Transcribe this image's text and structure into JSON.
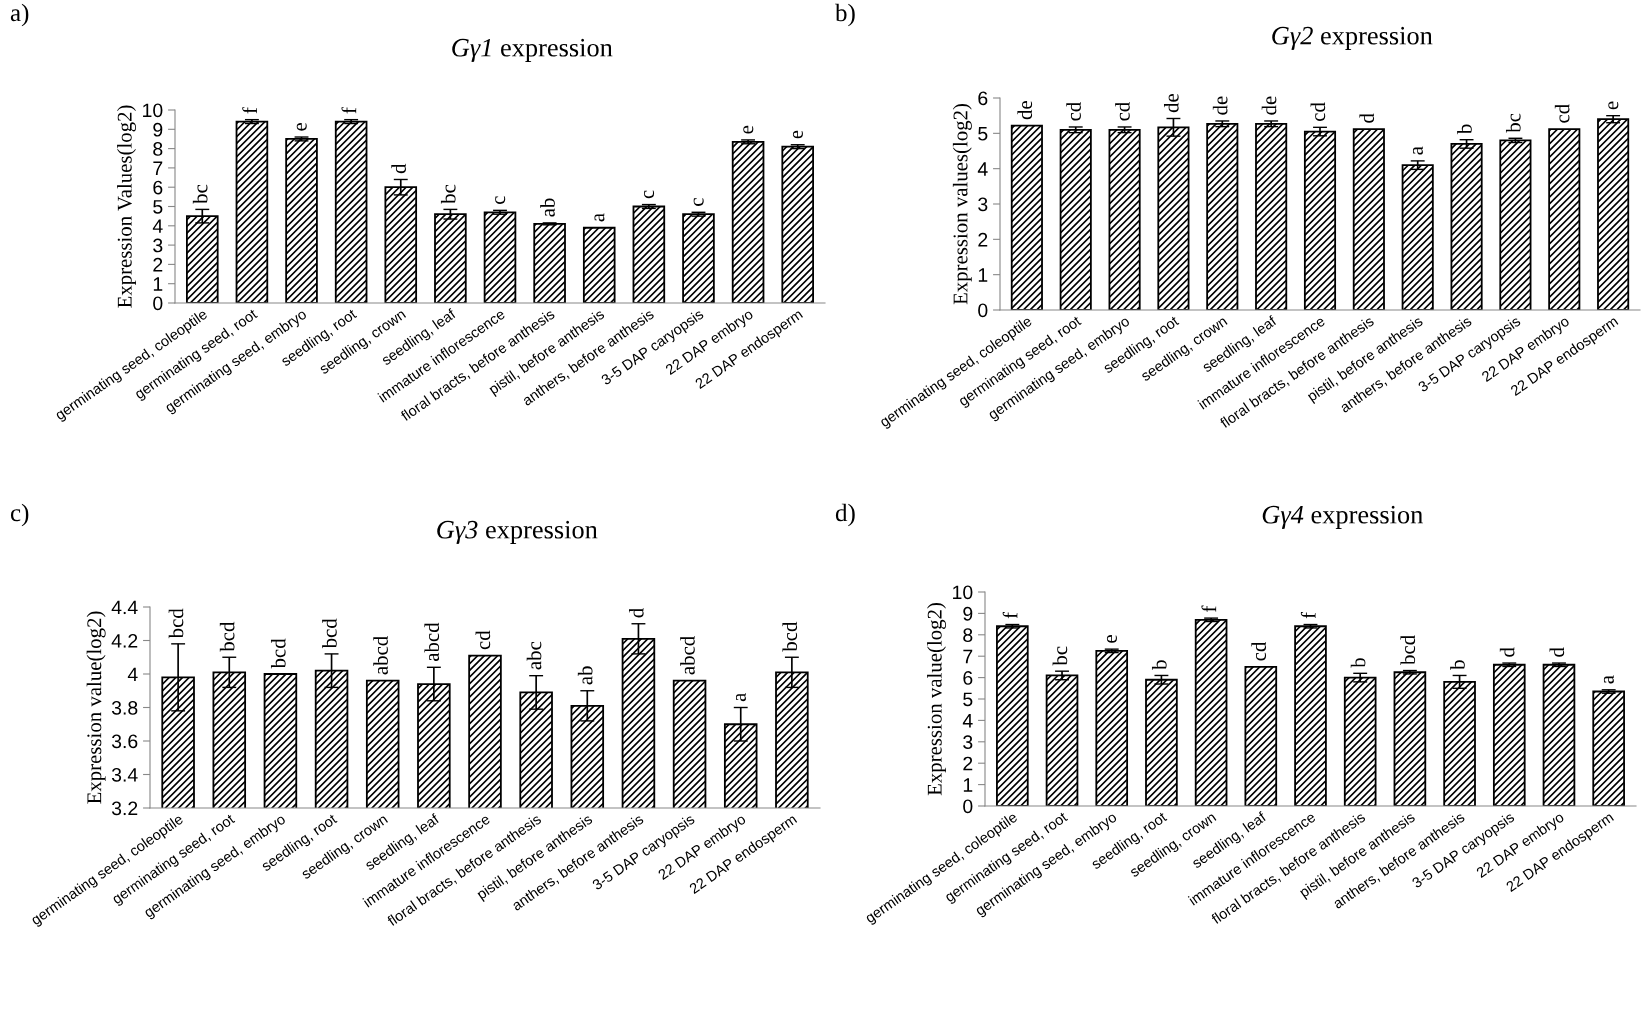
{
  "chart_data": [
    {
      "type": "bar",
      "title": "Gγ1 expression",
      "ylabel": "Expression Values(log2)",
      "annotations": [
        "a)"
      ],
      "categories": [
        "germinating seed, coleoptile",
        "germinating seed, root",
        "germinating seed, embryo",
        "seedling, root",
        "seedling, crown",
        "seedling, leaf",
        "immature inflorescence",
        "floral bracts, before anthesis",
        "pistil, before anthesis",
        "anthers, before anthesis",
        "3-5 DAP caryopsis",
        "22 DAP embryo",
        "22 DAP endosperm"
      ],
      "series": [
        {
          "color": "#000000",
          "values": [
            4.5,
            9.4,
            8.5,
            9.4,
            6.0,
            4.6,
            4.7,
            4.1,
            3.9,
            5.0,
            4.6,
            8.35,
            8.1
          ],
          "errors": [
            0.35,
            0.1,
            0.1,
            0.1,
            0.4,
            0.25,
            0.1,
            0.05,
            null,
            0.1,
            0.1,
            0.1,
            0.1
          ],
          "value_labels": [
            "bc",
            "f",
            "e",
            "f",
            "d",
            "bc",
            "c",
            "ab",
            "a",
            "c",
            "c",
            "e",
            "e"
          ]
        }
      ],
      "ylim": [
        0,
        10
      ],
      "yticks": [
        0,
        1,
        2,
        3,
        4,
        5,
        6,
        7,
        8,
        9,
        10
      ],
      "grid": false,
      "legend": false
    },
    {
      "type": "bar",
      "title": "Gγ2 expression",
      "ylabel": "Expression values(log2)",
      "annotations": [
        "b)"
      ],
      "categories": [
        "germinating seed, coleoptile",
        "germinating seed, root",
        "germinating seed, embryo",
        "seedling, root",
        "seedling, crown",
        "seedling, leaf",
        "immature inflorescence",
        "floral bracts, before anthesis",
        "pistil, before anthesis",
        "anthers, before anthesis",
        "3-5 DAP caryopsis",
        "22 DAP embryo",
        "22 DAP endosperm"
      ],
      "series": [
        {
          "color": "#000000",
          "values": [
            5.22,
            5.1,
            5.1,
            5.17,
            5.27,
            5.27,
            5.05,
            5.12,
            4.1,
            4.7,
            4.8,
            5.12,
            5.4
          ],
          "errors": [
            null,
            0.08,
            0.08,
            0.25,
            0.08,
            0.08,
            0.12,
            null,
            0.12,
            0.12,
            0.06,
            null,
            0.1
          ],
          "value_labels": [
            "de",
            "cd",
            "cd",
            "de",
            "de",
            "de",
            "cd",
            "d",
            "a",
            "b",
            "bc",
            "cd",
            "e"
          ]
        }
      ],
      "ylim": [
        0,
        6
      ],
      "yticks": [
        0,
        1,
        2,
        3,
        4,
        5,
        6
      ],
      "grid": false,
      "legend": false
    },
    {
      "type": "bar",
      "title": "Gγ3 expression",
      "ylabel": "Expression value(log2)",
      "annotations": [
        "c)"
      ],
      "categories": [
        "germinating seed, coleoptile",
        "germinating seed, root",
        "germinating seed, embryo",
        "seedling, root",
        "seedling, crown",
        "seedling, leaf",
        "immature inflorescence",
        "floral bracts, before anthesis",
        "pistil, before anthesis",
        "anthers, before anthesis",
        "3-5 DAP caryopsis",
        "22 DAP embryo",
        "22 DAP endosperm"
      ],
      "series": [
        {
          "color": "#000000",
          "values": [
            3.98,
            4.01,
            4.0,
            4.02,
            3.96,
            3.94,
            4.11,
            3.89,
            3.81,
            4.21,
            3.96,
            3.7,
            4.01
          ],
          "errors": [
            0.2,
            0.09,
            null,
            0.1,
            null,
            0.1,
            null,
            0.1,
            0.09,
            0.09,
            null,
            0.1,
            0.09
          ],
          "value_labels": [
            "bcd",
            "bcd",
            "bcd",
            "bcd",
            "abcd",
            "abcd",
            "cd",
            "abc",
            "ab",
            "d",
            "abcd",
            "a",
            "bcd"
          ]
        }
      ],
      "ylim": [
        3.2,
        4.4
      ],
      "yticks": [
        {
          "value": 3.2,
          "label": "3.2"
        },
        {
          "value": 3.4,
          "label": "3.4"
        },
        {
          "value": 3.6,
          "label": "3.6"
        },
        {
          "value": 3.8,
          "label": "3.8"
        },
        {
          "value": 4,
          "label": "4"
        },
        {
          "value": 4.2,
          "label": "4.2"
        },
        {
          "value": 4.4,
          "label": "4.4"
        }
      ],
      "grid": false,
      "legend": false
    },
    {
      "type": "bar",
      "title": "Gγ4 expression",
      "ylabel": "Expression value(log2)",
      "annotations": [
        "d)"
      ],
      "categories": [
        "germinating seed, coleoptile",
        "germinating seed, root",
        "germinating seed, embryo",
        "seedling, root",
        "seedling, crown",
        "seedling, leaf",
        "immature inflorescence",
        "floral bracts, before anthesis",
        "pistil, before anthesis",
        "anthers, before anthesis",
        "3-5 DAP caryopsis",
        "22 DAP embryo",
        "22 DAP endosperm"
      ],
      "series": [
        {
          "color": "#000000",
          "values": [
            8.4,
            6.1,
            7.25,
            5.9,
            8.7,
            6.5,
            8.4,
            6.0,
            6.25,
            5.8,
            6.6,
            6.6,
            5.35
          ],
          "errors": [
            0.08,
            0.2,
            0.08,
            0.2,
            0.08,
            null,
            0.08,
            0.2,
            0.08,
            0.3,
            0.08,
            0.08,
            0.08
          ],
          "value_labels": [
            "f",
            "bc",
            "e",
            "b",
            "f",
            "cd",
            "f",
            "b",
            "bcd",
            "b",
            "d",
            "d",
            "a"
          ]
        }
      ],
      "ylim": [
        0,
        10
      ],
      "yticks": [
        0,
        1,
        2,
        3,
        4,
        5,
        6,
        7,
        8,
        9,
        10
      ],
      "grid": false,
      "legend": false
    }
  ]
}
